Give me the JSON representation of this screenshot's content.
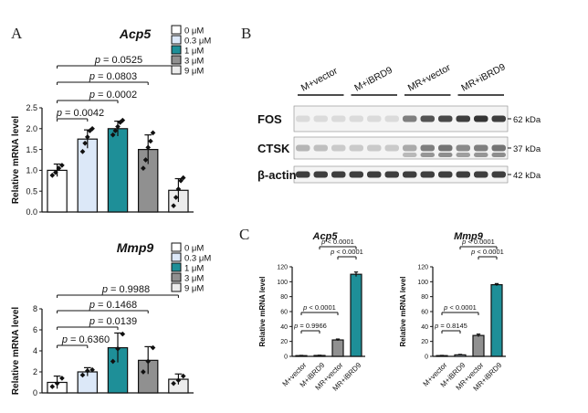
{
  "letters": {
    "a": "A",
    "b": "B",
    "c": "C"
  },
  "panelA": {
    "legend": {
      "labels": [
        "0 μM",
        "0.3 μM",
        "1 μM",
        "3 μM",
        "9 μM"
      ],
      "colors": [
        "#ffffff",
        "#dce8f8",
        "#1e8f98",
        "#909090",
        "#ececec"
      ]
    },
    "xgroups": [
      "0 μM",
      "0.3 μM",
      "1 μM",
      "3 μM",
      "9 μM"
    ]
  },
  "chart_data": [
    {
      "type": "bar",
      "title": "Acp5",
      "ylabel": "Relative mRNA level",
      "ylim": [
        0,
        2.5
      ],
      "yticks": [
        "0.0",
        "0.5",
        "1.0",
        "1.5",
        "2.0",
        "2.5"
      ],
      "categories": [
        "0 μM",
        "0.3 μM",
        "1 μM",
        "3 μM",
        "9 μM"
      ],
      "values": [
        1.0,
        1.75,
        2.0,
        1.5,
        0.52
      ],
      "errors": [
        0.15,
        0.22,
        0.18,
        0.35,
        0.28
      ],
      "points": [
        [
          0.88,
          0.95,
          1.05,
          1.12
        ],
        [
          1.45,
          1.65,
          1.8,
          1.95,
          2.0
        ],
        [
          1.85,
          1.95,
          2.05,
          2.15,
          2.2
        ],
        [
          1.05,
          1.25,
          1.55,
          1.7,
          1.9
        ],
        [
          0.15,
          0.35,
          0.55,
          0.75,
          0.82
        ]
      ],
      "comparisons": [
        {
          "label": "p = 0.0042",
          "from": 0,
          "to": 1
        },
        {
          "label": "p = 0.0002",
          "from": 0,
          "to": 2
        },
        {
          "label": "p = 0.0803",
          "from": 0,
          "to": 3
        },
        {
          "label": "p = 0.0525",
          "from": 0,
          "to": 4
        }
      ]
    },
    {
      "type": "bar",
      "title": "Mmp9",
      "ylabel": "Relative mRNA level",
      "ylim": [
        0,
        8
      ],
      "yticks": [
        "0",
        "2",
        "4",
        "6",
        "8"
      ],
      "categories": [
        "0 μM",
        "0.3 μM",
        "1 μM",
        "3 μM",
        "9 μM"
      ],
      "values": [
        1.0,
        2.0,
        4.3,
        3.1,
        1.3
      ],
      "errors": [
        0.6,
        0.4,
        1.4,
        1.3,
        0.5
      ],
      "points": [
        [
          0.6,
          0.9,
          1.4
        ],
        [
          1.7,
          2.1,
          2.2
        ],
        [
          3.0,
          4.2,
          5.6
        ],
        [
          2.0,
          3.0,
          4.3
        ],
        [
          0.9,
          1.2,
          1.6
        ]
      ],
      "comparisons": [
        {
          "label": "p = 0.6360",
          "from": 0,
          "to": 1
        },
        {
          "label": "p = 0.0139",
          "from": 0,
          "to": 2
        },
        {
          "label": "p = 0.1468",
          "from": 0,
          "to": 3
        },
        {
          "label": "p = 0.9988",
          "from": 0,
          "to": 4
        }
      ]
    },
    {
      "type": "bar",
      "title": "Acp5",
      "ylabel": "Relative mRNA level",
      "ylim": [
        0,
        120
      ],
      "yticks": [
        "0",
        "20",
        "40",
        "60",
        "80",
        "100",
        "120"
      ],
      "categories": [
        "M+vector",
        "M+iBRD9",
        "MR+vector",
        "MR+iBRD9"
      ],
      "values": [
        1.0,
        1.2,
        22,
        110
      ],
      "errors": [
        0.3,
        0.3,
        1.2,
        3.0
      ],
      "colors": [
        "#ffffff",
        "#dce8f8",
        "#909090",
        "#1e8f98"
      ],
      "comparisons": [
        {
          "label": "p = 0.9966",
          "from": 0,
          "to": 1
        },
        {
          "label": "p < 0.0001",
          "from": 0,
          "to": 2
        },
        {
          "label": "p < 0.0001",
          "from": 2,
          "to": 3
        },
        {
          "label": "p < 0.0001",
          "from": 1,
          "to": 3
        }
      ]
    },
    {
      "type": "bar",
      "title": "Mmp9",
      "ylabel": "Relative mRNA level",
      "ylim": [
        0,
        120
      ],
      "yticks": [
        "0",
        "20",
        "40",
        "60",
        "80",
        "100",
        "120"
      ],
      "categories": [
        "M+vector",
        "M+iBRD9",
        "MR+vector",
        "MR+iBRD9"
      ],
      "values": [
        1.0,
        2.0,
        28,
        96
      ],
      "errors": [
        0.3,
        0.6,
        1.8,
        1.5
      ],
      "colors": [
        "#ffffff",
        "#dce8f8",
        "#909090",
        "#1e8f98"
      ],
      "comparisons": [
        {
          "label": "p = 0.8145",
          "from": 0,
          "to": 1
        },
        {
          "label": "p < 0.0001",
          "from": 0,
          "to": 2
        },
        {
          "label": "p < 0.0001",
          "from": 2,
          "to": 3
        },
        {
          "label": "p < 0.0001",
          "from": 1,
          "to": 3
        }
      ]
    }
  ],
  "blot": {
    "groups": [
      "M+vector",
      "M+iBRD9",
      "MR+vector",
      "MR+iBRD9"
    ],
    "rows": [
      {
        "label": "FOS",
        "kda": "62 kDa",
        "intensity": [
          0.12,
          0.12,
          0.12,
          0.12,
          0.12,
          0.12,
          0.55,
          0.75,
          0.8,
          0.85,
          0.9,
          0.85
        ]
      },
      {
        "label": "CTSK",
        "kda": "37 kDa",
        "intensity": [
          0.3,
          0.25,
          0.2,
          0.2,
          0.2,
          0.2,
          0.35,
          0.55,
          0.6,
          0.5,
          0.55,
          0.6
        ]
      },
      {
        "label": "β-actin",
        "kda": "42 kDa",
        "intensity": [
          0.85,
          0.85,
          0.85,
          0.85,
          0.85,
          0.85,
          0.85,
          0.85,
          0.85,
          0.85,
          0.85,
          0.85
        ]
      }
    ]
  }
}
